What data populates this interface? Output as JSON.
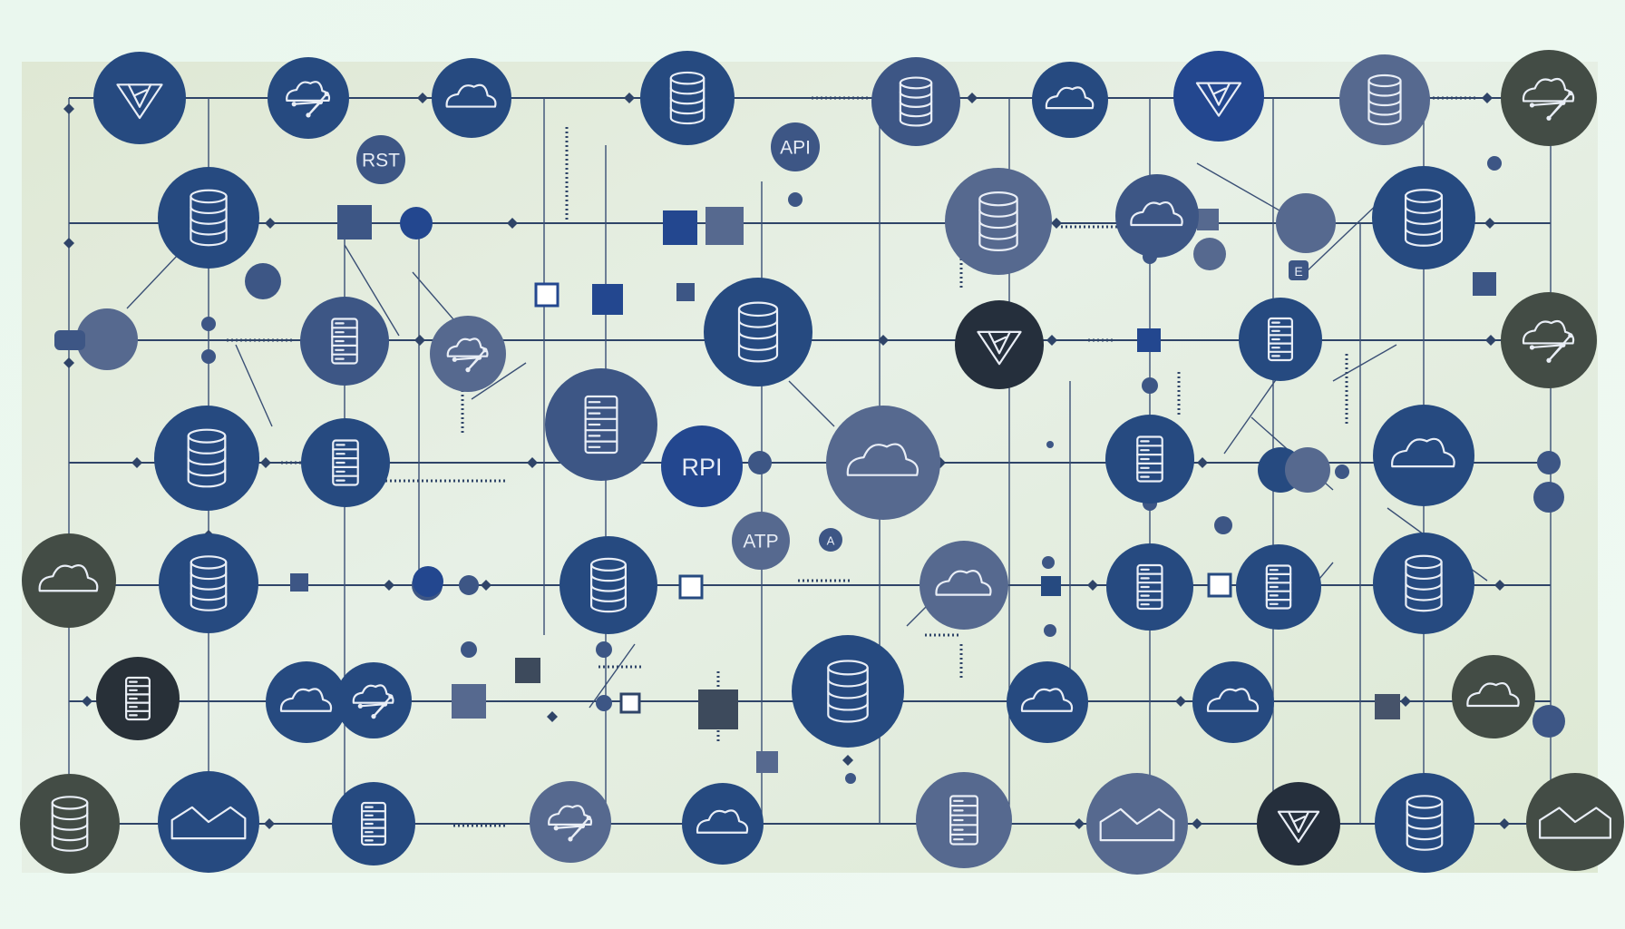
{
  "diagram": {
    "labels": {
      "rst": "RST",
      "api": "API",
      "rpi": "RPI",
      "atp": "ATP",
      "small_a": "A",
      "small_e": "E"
    },
    "colors": {
      "navy": "#264a80",
      "blue": "#23478f",
      "slate": "#3d5685",
      "steel": "#56698f",
      "olive": "#434c45",
      "dark": "#283038",
      "wire": "#2f4468"
    },
    "icon_types": [
      "database-icon",
      "server-rack-icon",
      "cloud-icon",
      "cloud-network-icon",
      "vector-logo-icon",
      "chart-icon"
    ]
  }
}
